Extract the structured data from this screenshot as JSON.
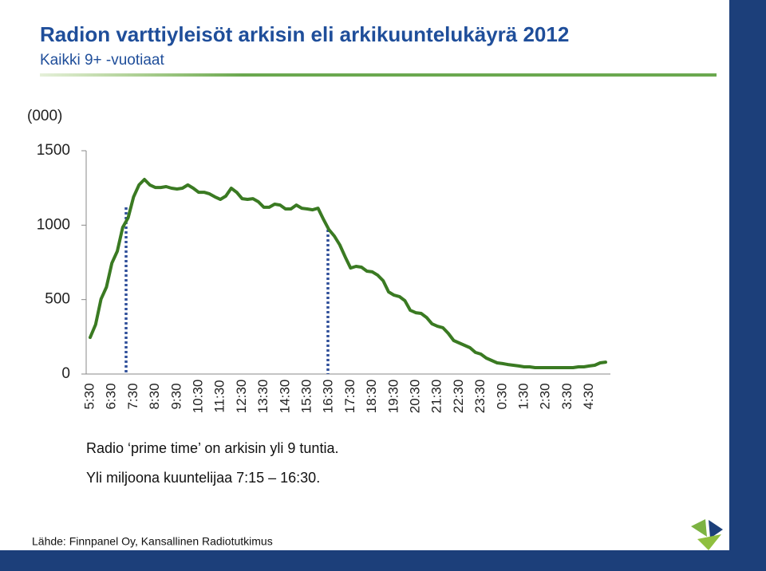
{
  "chart_data": {
    "type": "line",
    "title": "Radion varttiyleisöt arkisin eli arkikuuntelukäyrä 2012",
    "subtitle": "Kaikki 9+ -vuotiaat",
    "y_label": "(000)",
    "annotations": [
      "Radio ‘prime time’ on arkisin yli 9 tuntia.",
      "Yli miljoona kuuntelijaa 7:15 – 16:30."
    ],
    "source": "Lähde: Finnpanel Oy, Kansallinen Radiotutkimus",
    "categories": [
      "5:30",
      null,
      null,
      null,
      "6:30",
      null,
      null,
      null,
      "7:30",
      null,
      null,
      null,
      "8:30",
      null,
      null,
      null,
      "9:30",
      null,
      null,
      null,
      "10:30",
      null,
      null,
      null,
      "11:30",
      null,
      null,
      null,
      "12:30",
      null,
      null,
      null,
      "13:30",
      null,
      null,
      null,
      "14:30",
      null,
      null,
      null,
      "15:30",
      null,
      null,
      null,
      "16:30",
      null,
      null,
      null,
      "17:30",
      null,
      null,
      null,
      "18:30",
      null,
      null,
      null,
      "19:30",
      null,
      null,
      null,
      "20:30",
      null,
      null,
      null,
      "21:30",
      null,
      null,
      null,
      "22:30",
      null,
      null,
      null,
      "23:30",
      null,
      null,
      null,
      "0:30",
      null,
      null,
      null,
      "1:30",
      null,
      null,
      null,
      "2:30",
      null,
      null,
      null,
      "3:30",
      null,
      null,
      null,
      "4:30",
      null,
      null,
      null
    ],
    "values": [
      246,
      332,
      503,
      584,
      745,
      825,
      985,
      1050,
      1190,
      1270,
      1307,
      1270,
      1253,
      1253,
      1259,
      1248,
      1243,
      1248,
      1270,
      1248,
      1221,
      1221,
      1210,
      1190,
      1173,
      1195,
      1248,
      1221,
      1178,
      1173,
      1178,
      1157,
      1120,
      1120,
      1141,
      1135,
      1109,
      1109,
      1135,
      1114,
      1109,
      1103,
      1114,
      1039,
      970,
      927,
      868,
      787,
      712,
      723,
      718,
      691,
      686,
      664,
      627,
      552,
      530,
      520,
      493,
      428,
      412,
      407,
      380,
      337,
      321,
      311,
      273,
      225,
      209,
      193,
      177,
      145,
      134,
      107,
      91,
      75,
      70,
      64,
      59,
      54,
      48,
      48,
      43,
      43,
      43,
      43,
      43,
      43,
      43,
      43,
      48,
      48,
      54,
      59,
      75,
      80
    ],
    "color": "#3a7a22",
    "ylim": [
      0,
      1500
    ],
    "yticks": [
      0,
      500,
      1000,
      1500
    ],
    "grid": false
  }
}
